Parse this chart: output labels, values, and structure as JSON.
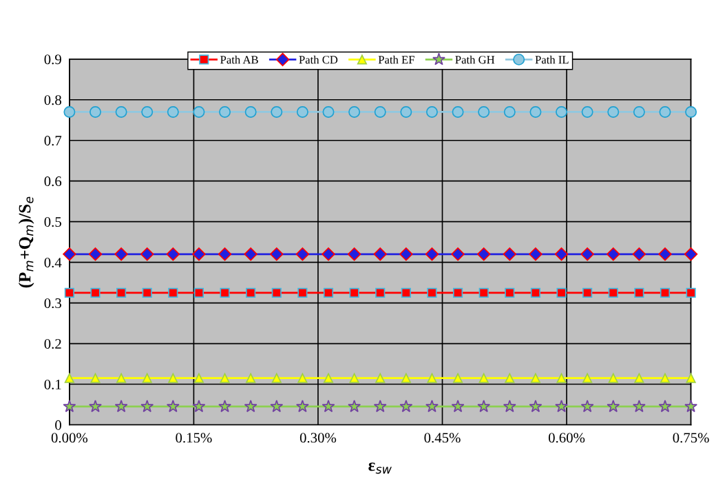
{
  "chart_data": {
    "type": "line",
    "xlabel": "ε$_{sw}$",
    "ylabel": "(P$_{m}$+Q$_{m}$)/S$_{e}$",
    "x": [
      0,
      0.03125,
      0.0625,
      0.09375,
      0.125,
      0.15625,
      0.1875,
      0.21875,
      0.25,
      0.28125,
      0.3125,
      0.34375,
      0.375,
      0.40625,
      0.4375,
      0.46875,
      0.5,
      0.53125,
      0.5625,
      0.59375,
      0.625,
      0.65625,
      0.6875,
      0.71875,
      0.75
    ],
    "series": [
      {
        "name": "Path AB",
        "color": "#ff0000",
        "marker": "square",
        "values": [
          0.325,
          0.325,
          0.325,
          0.325,
          0.325,
          0.325,
          0.325,
          0.325,
          0.325,
          0.325,
          0.325,
          0.325,
          0.325,
          0.325,
          0.325,
          0.325,
          0.325,
          0.325,
          0.325,
          0.325,
          0.325,
          0.325,
          0.325,
          0.325,
          0.325
        ]
      },
      {
        "name": "Path CD",
        "color": "#2020e0",
        "marker": "diamond",
        "values": [
          0.42,
          0.42,
          0.42,
          0.42,
          0.42,
          0.42,
          0.42,
          0.42,
          0.42,
          0.42,
          0.42,
          0.42,
          0.42,
          0.42,
          0.42,
          0.42,
          0.42,
          0.42,
          0.42,
          0.42,
          0.42,
          0.42,
          0.42,
          0.42,
          0.42
        ]
      },
      {
        "name": "Path EF",
        "color": "#ffff00",
        "marker": "triangle",
        "values": [
          0.115,
          0.115,
          0.115,
          0.115,
          0.115,
          0.115,
          0.115,
          0.115,
          0.115,
          0.115,
          0.115,
          0.115,
          0.115,
          0.115,
          0.115,
          0.115,
          0.115,
          0.115,
          0.115,
          0.115,
          0.115,
          0.115,
          0.115,
          0.115,
          0.115
        ]
      },
      {
        "name": "Path GH",
        "color": "#8cd050",
        "marker": "star",
        "values": [
          0.045,
          0.045,
          0.045,
          0.045,
          0.045,
          0.045,
          0.045,
          0.045,
          0.045,
          0.045,
          0.045,
          0.045,
          0.045,
          0.045,
          0.045,
          0.045,
          0.045,
          0.045,
          0.045,
          0.045,
          0.045,
          0.045,
          0.045,
          0.045,
          0.045
        ]
      },
      {
        "name": "Path IL",
        "color": "#90c8e0",
        "marker": "circle",
        "values": [
          0.77,
          0.77,
          0.77,
          0.77,
          0.77,
          0.77,
          0.77,
          0.77,
          0.77,
          0.77,
          0.77,
          0.77,
          0.77,
          0.77,
          0.77,
          0.77,
          0.77,
          0.77,
          0.77,
          0.77,
          0.77,
          0.77,
          0.77,
          0.77,
          0.77
        ]
      }
    ],
    "xlim": [
      0,
      0.75
    ],
    "xticks": [
      {
        "value": 0,
        "label": "0.00%"
      },
      {
        "value": 0.15,
        "label": "0.15%"
      },
      {
        "value": 0.3,
        "label": "0.30%"
      },
      {
        "value": 0.45,
        "label": "0.45%"
      },
      {
        "value": 0.6,
        "label": "0.60%"
      },
      {
        "value": 0.75,
        "label": "0.75%"
      }
    ],
    "ylim": [
      0,
      0.9
    ],
    "yticks": [
      0,
      0.1,
      0.2,
      0.3,
      0.4,
      0.5,
      0.6,
      0.7,
      0.8,
      0.9
    ],
    "grid": true,
    "legend": "top",
    "line_style": "solid"
  }
}
